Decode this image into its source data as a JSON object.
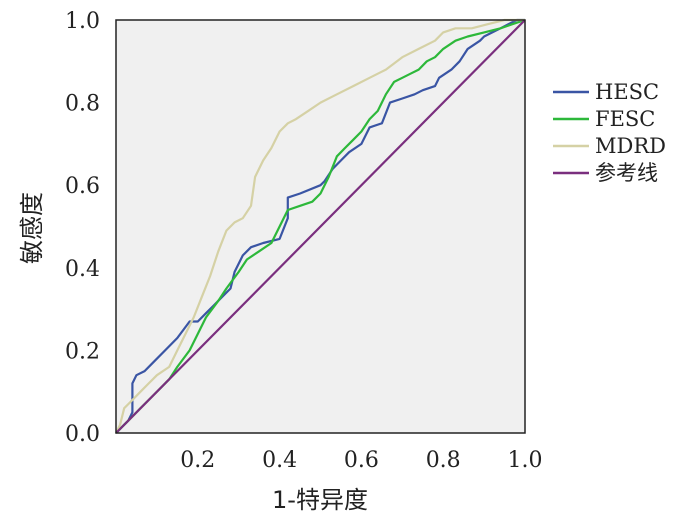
{
  "chart_data": {
    "type": "line",
    "xlabel": "1-特异度",
    "ylabel": "敏感度",
    "xlim": [
      0,
      1
    ],
    "ylim": [
      0,
      1
    ],
    "x_ticks": [
      "0.2",
      "0.4",
      "0.6",
      "0.8",
      "1.0"
    ],
    "y_ticks": [
      "0.0",
      "0.2",
      "0.4",
      "0.6",
      "0.8",
      "1.0"
    ],
    "plot_background": "#f0f0f0",
    "legend_position": "right",
    "series": [
      {
        "name": "HESC",
        "color": "#3a55a4",
        "points": [
          [
            0,
            0
          ],
          [
            0.03,
            0.03
          ],
          [
            0.04,
            0.05
          ],
          [
            0.04,
            0.12
          ],
          [
            0.05,
            0.14
          ],
          [
            0.07,
            0.15
          ],
          [
            0.09,
            0.17
          ],
          [
            0.12,
            0.2
          ],
          [
            0.15,
            0.23
          ],
          [
            0.18,
            0.27
          ],
          [
            0.2,
            0.27
          ],
          [
            0.22,
            0.29
          ],
          [
            0.24,
            0.31
          ],
          [
            0.26,
            0.33
          ],
          [
            0.28,
            0.35
          ],
          [
            0.29,
            0.39
          ],
          [
            0.31,
            0.43
          ],
          [
            0.33,
            0.45
          ],
          [
            0.36,
            0.46
          ],
          [
            0.4,
            0.47
          ],
          [
            0.42,
            0.52
          ],
          [
            0.42,
            0.57
          ],
          [
            0.45,
            0.58
          ],
          [
            0.5,
            0.6
          ],
          [
            0.51,
            0.61
          ],
          [
            0.53,
            0.64
          ],
          [
            0.55,
            0.66
          ],
          [
            0.57,
            0.68
          ],
          [
            0.6,
            0.7
          ],
          [
            0.62,
            0.74
          ],
          [
            0.65,
            0.75
          ],
          [
            0.67,
            0.8
          ],
          [
            0.7,
            0.81
          ],
          [
            0.73,
            0.82
          ],
          [
            0.75,
            0.83
          ],
          [
            0.78,
            0.84
          ],
          [
            0.79,
            0.86
          ],
          [
            0.82,
            0.88
          ],
          [
            0.84,
            0.9
          ],
          [
            0.86,
            0.93
          ],
          [
            0.89,
            0.95
          ],
          [
            0.9,
            0.96
          ],
          [
            0.92,
            0.97
          ],
          [
            0.94,
            0.98
          ],
          [
            0.96,
            0.99
          ],
          [
            0.98,
            1
          ],
          [
            1,
            1
          ]
        ]
      },
      {
        "name": "FESC",
        "color": "#2db83a",
        "points": [
          [
            0,
            0
          ],
          [
            0.02,
            0.02
          ],
          [
            0.04,
            0.04
          ],
          [
            0.06,
            0.06
          ],
          [
            0.08,
            0.08
          ],
          [
            0.11,
            0.11
          ],
          [
            0.13,
            0.13
          ],
          [
            0.15,
            0.16
          ],
          [
            0.18,
            0.2
          ],
          [
            0.2,
            0.24
          ],
          [
            0.22,
            0.28
          ],
          [
            0.25,
            0.32
          ],
          [
            0.27,
            0.35
          ],
          [
            0.3,
            0.39
          ],
          [
            0.32,
            0.42
          ],
          [
            0.35,
            0.44
          ],
          [
            0.38,
            0.46
          ],
          [
            0.4,
            0.5
          ],
          [
            0.42,
            0.54
          ],
          [
            0.45,
            0.55
          ],
          [
            0.48,
            0.56
          ],
          [
            0.5,
            0.58
          ],
          [
            0.52,
            0.62
          ],
          [
            0.54,
            0.67
          ],
          [
            0.56,
            0.69
          ],
          [
            0.58,
            0.71
          ],
          [
            0.6,
            0.73
          ],
          [
            0.62,
            0.76
          ],
          [
            0.64,
            0.78
          ],
          [
            0.66,
            0.82
          ],
          [
            0.68,
            0.85
          ],
          [
            0.7,
            0.86
          ],
          [
            0.72,
            0.87
          ],
          [
            0.74,
            0.88
          ],
          [
            0.76,
            0.9
          ],
          [
            0.78,
            0.91
          ],
          [
            0.8,
            0.93
          ],
          [
            0.83,
            0.95
          ],
          [
            0.86,
            0.96
          ],
          [
            0.9,
            0.97
          ],
          [
            0.94,
            0.98
          ],
          [
            0.97,
            0.99
          ],
          [
            1,
            1
          ]
        ]
      },
      {
        "name": "MDRD",
        "color": "#d5d1a5",
        "points": [
          [
            0,
            0
          ],
          [
            0.01,
            0.02
          ],
          [
            0.02,
            0.06
          ],
          [
            0.04,
            0.08
          ],
          [
            0.06,
            0.1
          ],
          [
            0.08,
            0.12
          ],
          [
            0.1,
            0.14
          ],
          [
            0.13,
            0.16
          ],
          [
            0.15,
            0.2
          ],
          [
            0.17,
            0.24
          ],
          [
            0.19,
            0.28
          ],
          [
            0.21,
            0.33
          ],
          [
            0.23,
            0.38
          ],
          [
            0.25,
            0.44
          ],
          [
            0.27,
            0.49
          ],
          [
            0.29,
            0.51
          ],
          [
            0.31,
            0.52
          ],
          [
            0.33,
            0.55
          ],
          [
            0.34,
            0.62
          ],
          [
            0.36,
            0.66
          ],
          [
            0.38,
            0.69
          ],
          [
            0.4,
            0.73
          ],
          [
            0.42,
            0.75
          ],
          [
            0.44,
            0.76
          ],
          [
            0.47,
            0.78
          ],
          [
            0.5,
            0.8
          ],
          [
            0.54,
            0.82
          ],
          [
            0.58,
            0.84
          ],
          [
            0.62,
            0.86
          ],
          [
            0.66,
            0.88
          ],
          [
            0.7,
            0.91
          ],
          [
            0.74,
            0.93
          ],
          [
            0.78,
            0.95
          ],
          [
            0.8,
            0.97
          ],
          [
            0.83,
            0.98
          ],
          [
            0.87,
            0.98
          ],
          [
            0.91,
            0.99
          ],
          [
            0.95,
            1
          ],
          [
            1,
            1
          ]
        ]
      },
      {
        "name": "参考线",
        "color": "#7a2f7e",
        "points": [
          [
            0,
            0
          ],
          [
            1,
            1
          ]
        ]
      }
    ]
  }
}
